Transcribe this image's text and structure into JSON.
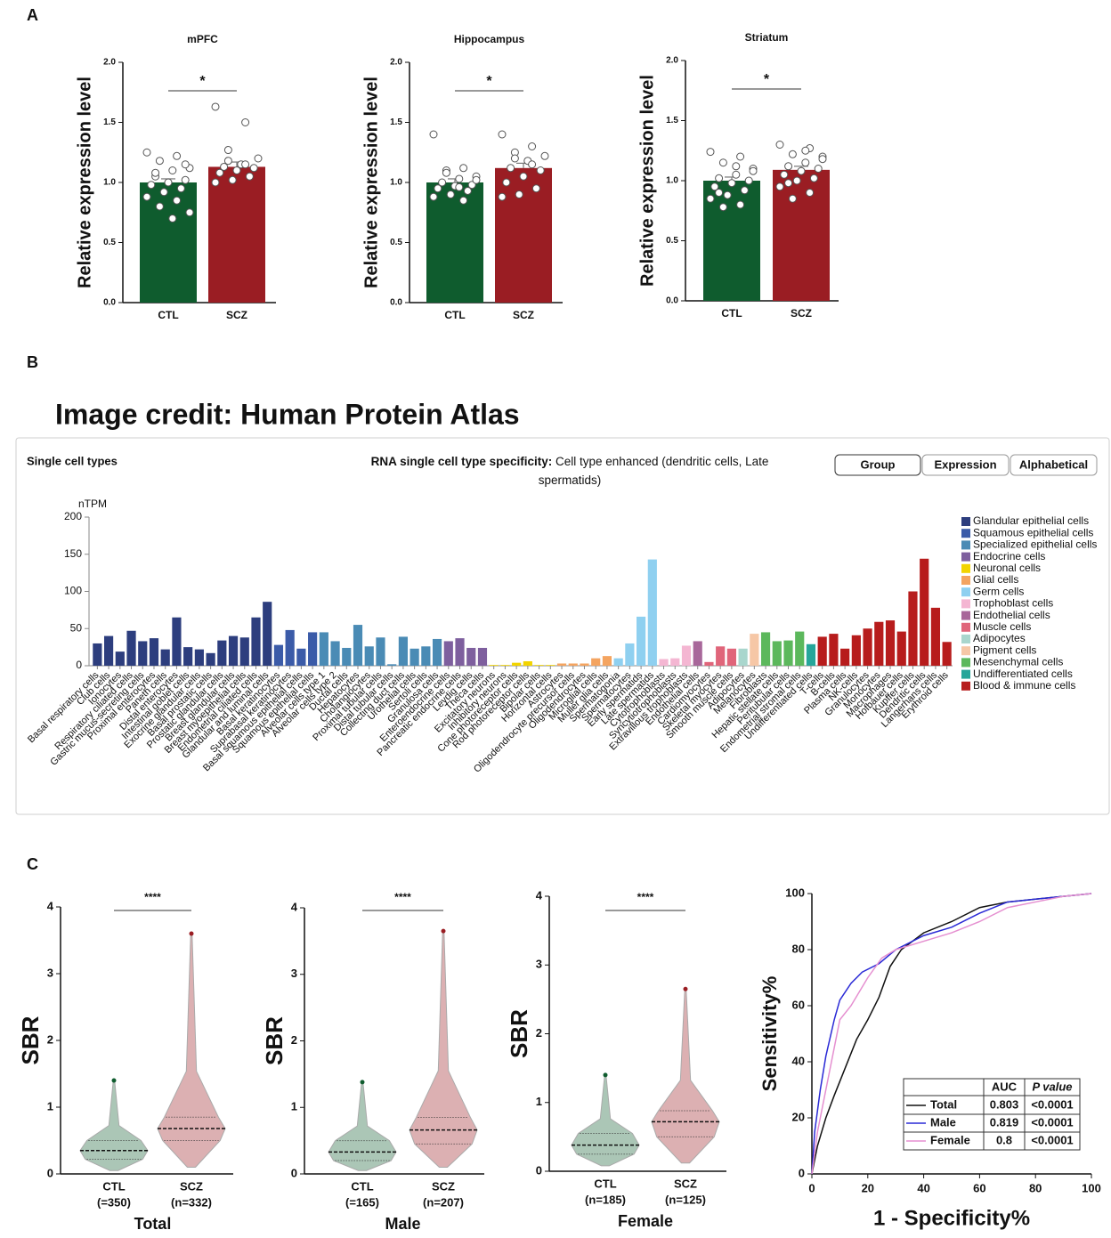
{
  "panels": [
    "A",
    "B",
    "C"
  ],
  "image_credit": "Image credit: Human Protein Atlas",
  "chart_data": [
    {
      "type": "bar",
      "title": "mPFC",
      "ylabel": "Relative expression level",
      "categories": [
        "CTL",
        "SCZ"
      ],
      "values": [
        1.0,
        1.13
      ],
      "errors": [
        0.03,
        0.04
      ],
      "colors": [
        "#0f5c2e",
        "#9a1d23"
      ],
      "significance": "*",
      "points": [
        [
          1.25,
          1.22,
          1.18,
          1.12,
          1.1,
          1.05,
          1.02,
          1.0,
          0.98,
          0.95,
          0.92,
          0.88,
          0.85,
          0.8,
          0.75,
          0.7,
          1.08,
          1.15
        ],
        [
          1.63,
          1.5,
          1.27,
          1.2,
          1.15,
          1.13,
          1.12,
          1.1,
          1.08,
          1.05,
          1.02,
          1.0,
          1.15,
          1.18
        ]
      ],
      "ylim": [
        0,
        2
      ],
      "yticks": [
        {
          "value": 0,
          "label": "0.0"
        },
        {
          "value": 0.5,
          "label": "0.5"
        },
        {
          "value": 1,
          "label": "1.0"
        },
        {
          "value": 1.5,
          "label": "1.5"
        },
        {
          "value": 2,
          "label": "2.0"
        }
      ]
    },
    {
      "type": "bar",
      "title": "Hippocampus",
      "ylabel": "Relative expression level",
      "categories": [
        "CTL",
        "SCZ"
      ],
      "values": [
        1.0,
        1.12
      ],
      "errors": [
        0.03,
        0.04
      ],
      "colors": [
        "#0f5c2e",
        "#9a1d23"
      ],
      "significance": "*",
      "points": [
        [
          1.4,
          1.12,
          1.1,
          1.05,
          1.03,
          1.0,
          0.98,
          0.97,
          0.95,
          0.93,
          0.9,
          0.88,
          0.85,
          1.08,
          1.02,
          0.96
        ],
        [
          1.4,
          1.3,
          1.25,
          1.22,
          1.18,
          1.12,
          1.1,
          1.05,
          1.0,
          0.95,
          0.9,
          0.88,
          1.15,
          1.2
        ]
      ],
      "ylim": [
        0,
        2
      ],
      "yticks": [
        {
          "value": 0,
          "label": "0.0"
        },
        {
          "value": 0.5,
          "label": "0.5"
        },
        {
          "value": 1,
          "label": "1.0"
        },
        {
          "value": 1.5,
          "label": "1.5"
        },
        {
          "value": 2,
          "label": "2.0"
        }
      ]
    },
    {
      "type": "bar",
      "title": "Striatum",
      "ylabel": "Relative expression level",
      "categories": [
        "CTL",
        "SCZ"
      ],
      "values": [
        1.0,
        1.09
      ],
      "errors": [
        0.03,
        0.03
      ],
      "colors": [
        "#0f5c2e",
        "#9a1d23"
      ],
      "significance": "*",
      "points": [
        [
          1.24,
          1.2,
          1.15,
          1.1,
          1.05,
          1.02,
          1.0,
          0.98,
          0.95,
          0.92,
          0.88,
          0.85,
          0.8,
          0.78,
          1.08,
          1.12,
          0.9
        ],
        [
          1.3,
          1.27,
          1.22,
          1.2,
          1.15,
          1.12,
          1.1,
          1.08,
          1.05,
          1.02,
          1.0,
          0.95,
          0.9,
          0.85,
          1.18,
          1.25,
          0.98
        ]
      ],
      "ylim": [
        0,
        2
      ],
      "yticks": [
        {
          "value": 0,
          "label": "0.0"
        },
        {
          "value": 0.5,
          "label": "0.5"
        },
        {
          "value": 1,
          "label": "1.0"
        },
        {
          "value": 1.5,
          "label": "1.5"
        },
        {
          "value": 2,
          "label": "2.0"
        }
      ]
    },
    {
      "type": "bar",
      "title": "Single cell types",
      "specificity_label": "RNA single cell type specificity:",
      "specificity_text": "Cell type enhanced (dendritic cells, Late spermatids)",
      "buttons": [
        "Group",
        "Expression",
        "Alphabetical"
      ],
      "ylabel": "nTPM",
      "categories": [
        "Basal respiratory cells",
        "Club cells",
        "Ionocytes",
        "Respiratory ciliated cells",
        "Gastric mucus-secreting cells",
        "Proximal enterocytes",
        "Paneth cells",
        "Distal enterocytes",
        "Intestinal goblet cells",
        "Exocrine glandular cells",
        "Basal prostatic cells",
        "Prostatic glandular cells",
        "Breast glandular cells",
        "Breast myoepithelial cells",
        "Endometrial ciliated cells",
        "Glandular and luminal cells",
        "Basal keratinocytes",
        "Suprabasal keratinocytes",
        "Basal squamous epithelial cells",
        "Squamous epithelial cells",
        "Alveolar cells type 1",
        "Alveolar cells type 2",
        "Ductal cells",
        "Hepatocytes",
        "Cholangiocytes",
        "Proximal tubular cells",
        "Distal tubular cells",
        "Collecting duct cells",
        "Urothelial cells",
        "Sertoli cells",
        "Granulosa cells",
        "Enteroendocrine cells",
        "Pancreatic endocrine cells",
        "Leydig cells",
        "Theca cells",
        "Excitatory neurons",
        "Inhibitory neurons",
        "Cone photoreceptor cells",
        "Rod photoreceptor cells",
        "Bipolar cells",
        "Horizontal cells",
        "Astrocytes",
        "Oligodendrocyte precursor cells",
        "Oligodendrocytes",
        "Microglial cells",
        "Muller glia cells",
        "Spermatogonia",
        "Spermatocytes",
        "Early spermatids",
        "Late spermatids",
        "Cytotrophoblasts",
        "Syncytiotrophoblasts",
        "Extravillous trophoblasts",
        "Endothelial cells",
        "Cardiomyocytes",
        "Skeletal myocytes",
        "Smooth muscle cells",
        "Adipocytes",
        "Melanocytes",
        "Fibroblasts",
        "Hepatic stellate cells",
        "Peritubular cells",
        "Endometrial stromal cells",
        "Undifferentiated cells",
        "T-cells",
        "B-cells",
        "Plasma cells",
        "NK-cells",
        "Granulocytes",
        "Monocytes",
        "Macrophages",
        "Hofbauer cells",
        "Kupffer cells",
        "Dendritic cells",
        "Langerhans cells",
        "Erythroid cells"
      ],
      "values": [
        30,
        40,
        19,
        47,
        33,
        37,
        22,
        65,
        25,
        22,
        17,
        34,
        40,
        38,
        65,
        86,
        28,
        48,
        23,
        45,
        45,
        33,
        24,
        55,
        26,
        38,
        2,
        39,
        23,
        26,
        36,
        33,
        37,
        24,
        24,
        1,
        1,
        4,
        6,
        1,
        1,
        3,
        3,
        3,
        10,
        13,
        10,
        30,
        66,
        143,
        9,
        10,
        27,
        33,
        5,
        26,
        23,
        23,
        43,
        45,
        33,
        34,
        46,
        29,
        39,
        43,
        23,
        41,
        50,
        59,
        61,
        46,
        100,
        144,
        78,
        32
      ],
      "colors": [
        "#2d3e7e",
        "#2d3e7e",
        "#2d3e7e",
        "#2d3e7e",
        "#2d3e7e",
        "#2d3e7e",
        "#2d3e7e",
        "#2d3e7e",
        "#2d3e7e",
        "#2d3e7e",
        "#2d3e7e",
        "#2d3e7e",
        "#2d3e7e",
        "#2d3e7e",
        "#2d3e7e",
        "#2d3e7e",
        "#3b5ba8",
        "#3b5ba8",
        "#3b5ba8",
        "#3b5ba8",
        "#4a8bb5",
        "#4a8bb5",
        "#4a8bb5",
        "#4a8bb5",
        "#4a8bb5",
        "#4a8bb5",
        "#4a8bb5",
        "#4a8bb5",
        "#4a8bb5",
        "#4a8bb5",
        "#4a8bb5",
        "#7e5f9e",
        "#7e5f9e",
        "#7e5f9e",
        "#7e5f9e",
        "#f2d400",
        "#f2d400",
        "#f2d400",
        "#f2d400",
        "#f2d400",
        "#f2d400",
        "#f4a460",
        "#f4a460",
        "#f4a460",
        "#f4a460",
        "#f4a460",
        "#8fd0f0",
        "#8fd0f0",
        "#8fd0f0",
        "#8fd0f0",
        "#f4b6d2",
        "#f4b6d2",
        "#f4b6d2",
        "#a8679a",
        "#e0657a",
        "#e0657a",
        "#e0657a",
        "#a9d6cd",
        "#f6c7a6",
        "#5cb85c",
        "#5cb85c",
        "#5cb85c",
        "#5cb85c",
        "#26a69a",
        "#b71c1c",
        "#b71c1c",
        "#b71c1c",
        "#b71c1c",
        "#b71c1c",
        "#b71c1c",
        "#b71c1c",
        "#b71c1c",
        "#b71c1c",
        "#b71c1c",
        "#b71c1c",
        "#b71c1c"
      ],
      "legend": [
        {
          "name": "Glandular epithelial cells",
          "color": "#2d3e7e"
        },
        {
          "name": "Squamous epithelial cells",
          "color": "#3b5ba8"
        },
        {
          "name": "Specialized epithelial cells",
          "color": "#4a8bb5"
        },
        {
          "name": "Endocrine cells",
          "color": "#7e5f9e"
        },
        {
          "name": "Neuronal cells",
          "color": "#f2d400"
        },
        {
          "name": "Glial cells",
          "color": "#f4a460"
        },
        {
          "name": "Germ cells",
          "color": "#8fd0f0"
        },
        {
          "name": "Trophoblast cells",
          "color": "#f4b6d2"
        },
        {
          "name": "Endothelial cells",
          "color": "#a8679a"
        },
        {
          "name": "Muscle cells",
          "color": "#e0657a"
        },
        {
          "name": "Adipocytes",
          "color": "#a9d6cd"
        },
        {
          "name": "Pigment cells",
          "color": "#f6c7a6"
        },
        {
          "name": "Mesenchymal cells",
          "color": "#5cb85c"
        },
        {
          "name": "Undifferentiated cells",
          "color": "#26a69a"
        },
        {
          "name": "Blood & immune cells",
          "color": "#b71c1c"
        }
      ],
      "ylim": [
        0,
        200
      ],
      "yticks": [
        0,
        50,
        100,
        150,
        200
      ]
    },
    {
      "type": "violin",
      "ylabel": "SBR",
      "xlabel": "Total",
      "categories": [
        "CTL",
        "SCZ"
      ],
      "n_labels": [
        "(=350)",
        "(n=332)"
      ],
      "significance": "****",
      "colors": [
        "#0f5c2e",
        "#9a1d23"
      ],
      "median": [
        0.35,
        0.68
      ],
      "q1": [
        0.22,
        0.5
      ],
      "q3": [
        0.5,
        0.85
      ],
      "min": [
        0.05,
        0.1
      ],
      "max": [
        1.4,
        3.6
      ],
      "ylim": [
        0,
        4
      ],
      "yticks": [
        0,
        1,
        2,
        3,
        4
      ]
    },
    {
      "type": "violin",
      "ylabel": "SBR",
      "xlabel": "Male",
      "categories": [
        "CTL",
        "SCZ"
      ],
      "n_labels": [
        "(=165)",
        "(n=207)"
      ],
      "significance": "****",
      "colors": [
        "#0f5c2e",
        "#9a1d23"
      ],
      "median": [
        0.33,
        0.66
      ],
      "q1": [
        0.2,
        0.45
      ],
      "q3": [
        0.5,
        0.85
      ],
      "min": [
        0.05,
        0.1
      ],
      "max": [
        1.38,
        3.65
      ],
      "ylim": [
        0,
        4
      ],
      "yticks": [
        0,
        1,
        2,
        3,
        4
      ]
    },
    {
      "type": "violin",
      "ylabel": "SBR",
      "xlabel": "Female",
      "categories": [
        "CTL",
        "SCZ"
      ],
      "n_labels": [
        "(n=185)",
        "(n=125)"
      ],
      "significance": "****",
      "colors": [
        "#0f5c2e",
        "#9a1d23"
      ],
      "median": [
        0.38,
        0.72
      ],
      "q1": [
        0.25,
        0.5
      ],
      "q3": [
        0.55,
        0.88
      ],
      "min": [
        0.08,
        0.12
      ],
      "max": [
        1.4,
        2.65
      ],
      "ylim": [
        0,
        4
      ],
      "yticks": [
        0,
        1,
        2,
        3,
        4
      ]
    },
    {
      "type": "line",
      "xlabel": "1 - Specificity%",
      "ylabel": "Sensitivity%",
      "table_header": [
        "AUC",
        "P value"
      ],
      "series": [
        {
          "name": "Total",
          "color": "#111111",
          "auc": 0.803,
          "p_value": "<0.0001",
          "x": [
            0,
            2,
            5,
            8,
            12,
            16,
            20,
            24,
            28,
            32,
            40,
            50,
            60,
            70,
            80,
            90,
            100
          ],
          "values": [
            0,
            10,
            20,
            28,
            38,
            48,
            55,
            63,
            74,
            80,
            86,
            90,
            95,
            97,
            98,
            99,
            100
          ]
        },
        {
          "name": "Male",
          "color": "#2a2ad6",
          "auc": 0.819,
          "p_value": "<0.0001",
          "x": [
            0,
            1,
            3,
            5,
            8,
            10,
            14,
            18,
            24,
            30,
            40,
            50,
            60,
            70,
            80,
            90,
            100
          ],
          "values": [
            0,
            15,
            30,
            42,
            55,
            62,
            68,
            72,
            75,
            80,
            85,
            88,
            93,
            97,
            98,
            99,
            100
          ]
        },
        {
          "name": "Female",
          "color": "#e58fd0",
          "auc": 0.8,
          "p_value": "<0.0001",
          "x": [
            0,
            2,
            4,
            7,
            10,
            14,
            20,
            25,
            30,
            40,
            50,
            60,
            70,
            80,
            90,
            100
          ],
          "values": [
            0,
            15,
            25,
            40,
            55,
            60,
            70,
            77,
            80,
            83,
            86,
            90,
            95,
            97,
            99,
            100
          ]
        }
      ],
      "xlim": [
        0,
        100
      ],
      "ylim": [
        0,
        100
      ],
      "xticks": [
        0,
        20,
        40,
        60,
        80,
        100
      ],
      "yticks": [
        0,
        20,
        40,
        60,
        80,
        100
      ]
    }
  ]
}
